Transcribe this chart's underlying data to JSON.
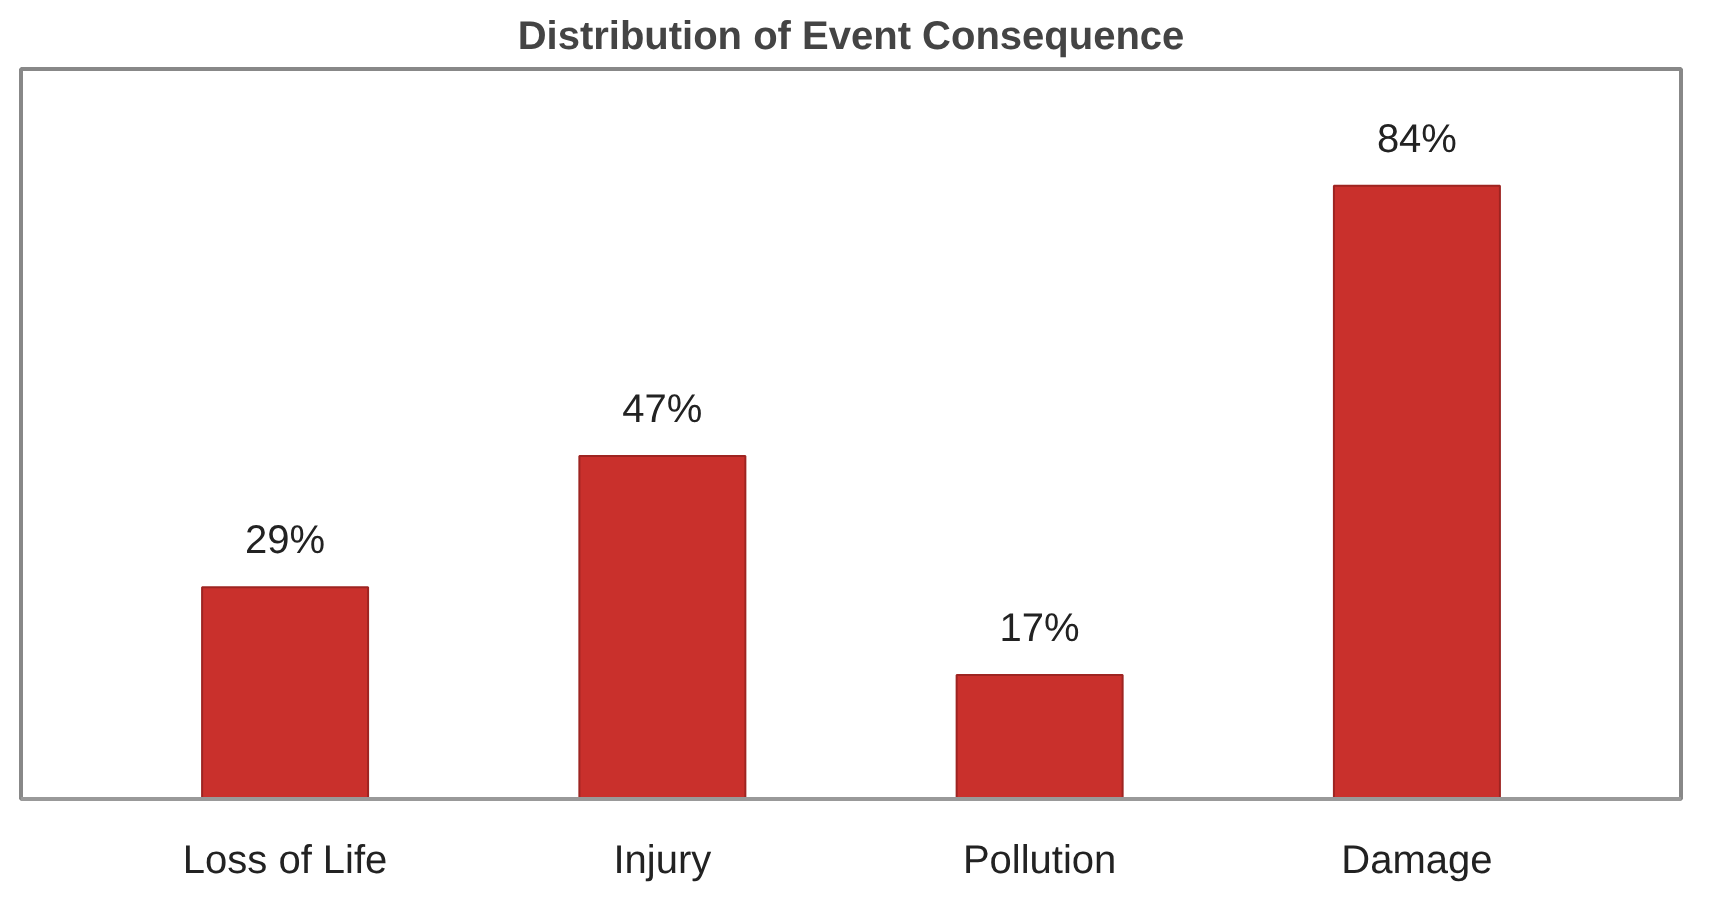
{
  "chart_data": {
    "type": "bar",
    "title": "Distribution of Event Consequence",
    "categories": [
      "Loss of Life",
      "Injury",
      "Pollution",
      "Damage"
    ],
    "values": [
      29,
      47,
      17,
      84
    ],
    "value_labels": [
      "29%",
      "47%",
      "17%",
      "84%"
    ],
    "color": "#c9302c",
    "ylim": [
      0,
      100
    ],
    "tick_labels": "x",
    "grid": false
  }
}
